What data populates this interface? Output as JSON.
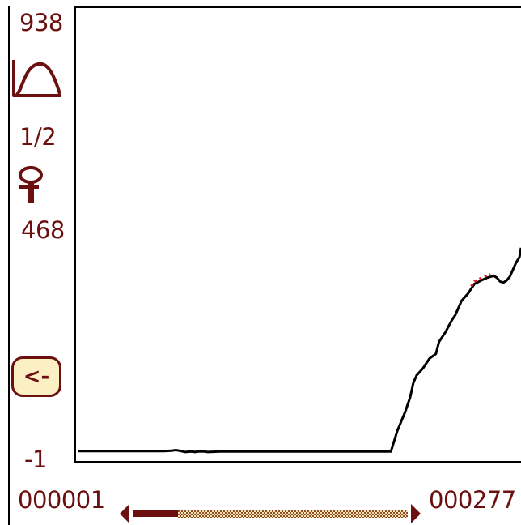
{
  "sidebar": {
    "y_max_label": "938",
    "ratio_label": "1/2",
    "y_mid_label": "468",
    "y_min_label": "-1",
    "curve_icon": "curve-shape-icon",
    "probe_icon": "probe-pin-icon",
    "back_button_label": "<-"
  },
  "axis": {
    "x_start_label": "000001",
    "x_end_label": "000277"
  },
  "colors": {
    "accent": "#6b0f0f",
    "button_bg": "#fbf0c4",
    "line": "#000000",
    "highlight": "#e02020"
  },
  "chart_data": {
    "type": "line",
    "ylim": [
      -1,
      938
    ],
    "xlim": [
      1,
      277
    ],
    "x_visible_max": 277,
    "series": [
      {
        "values_x": [
          1,
          3,
          55,
          60,
          62,
          64,
          68,
          72,
          74,
          76,
          80,
          82,
          90,
          110,
          130,
          160,
          172,
          176,
          180,
          185,
          190,
          192,
          196,
          200,
          205,
          208,
          210,
          212,
          216,
          220,
          224,
          226,
          230,
          232,
          234,
          236,
          238,
          240,
          244,
          246,
          248,
          252,
          256,
          258,
          260,
          262,
          264,
          266,
          268,
          270,
          272,
          274,
          276,
          277
        ],
        "values_y": [
          18,
          18,
          18,
          19,
          20,
          19,
          16,
          17,
          16,
          17,
          17,
          16,
          17,
          17,
          17,
          17,
          17,
          17,
          17,
          17,
          17,
          17,
          17,
          60,
          100,
          130,
          160,
          175,
          190,
          210,
          220,
          245,
          265,
          278,
          290,
          300,
          315,
          330,
          345,
          355,
          365,
          372,
          378,
          380,
          382,
          378,
          370,
          368,
          372,
          380,
          395,
          410,
          420,
          440
        ]
      }
    ],
    "highlight_x_range": [
      246,
      258
    ]
  }
}
